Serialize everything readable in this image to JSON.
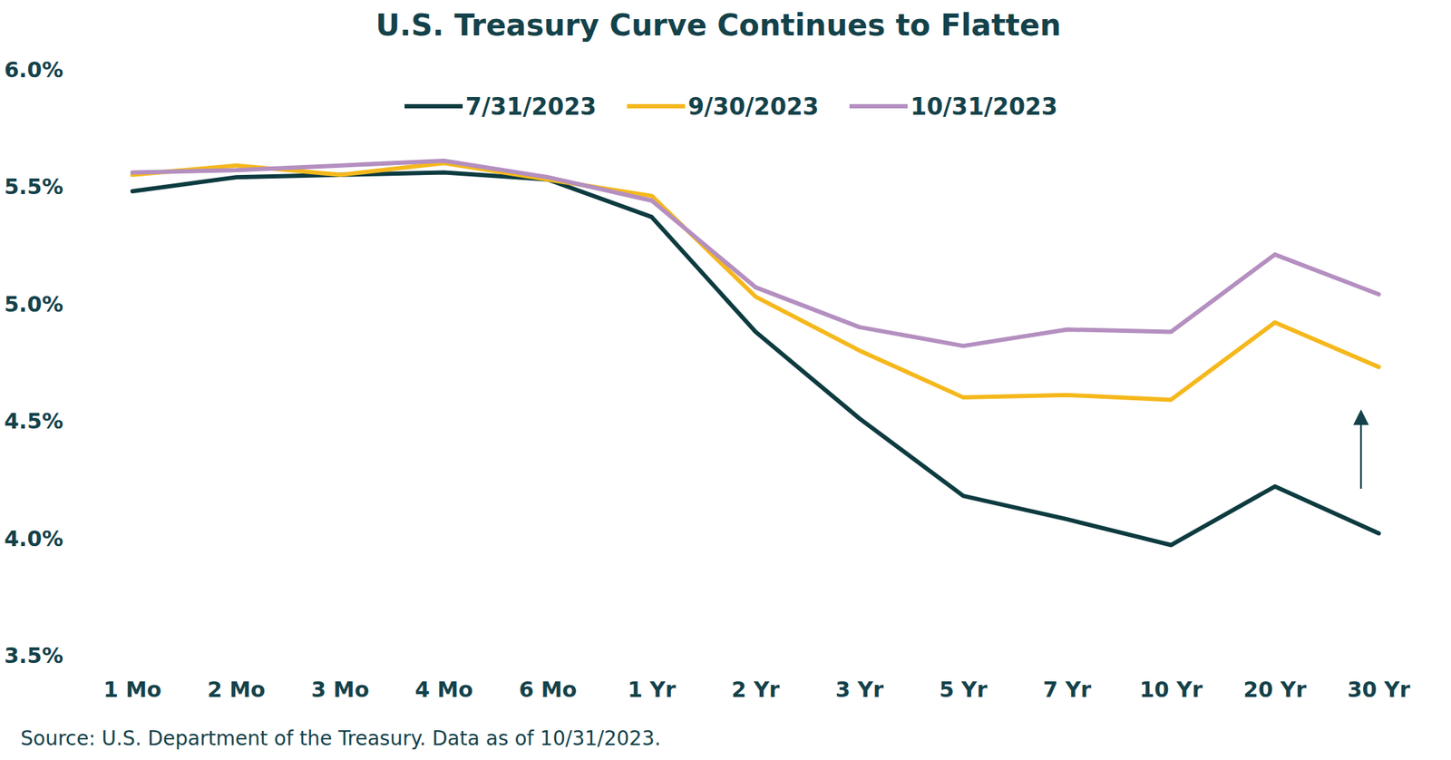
{
  "chart_data": {
    "type": "line",
    "title": "U.S. Treasury Curve Continues to Flatten",
    "source": "Source: U.S. Department of the Treasury. Data as of 10/31/2023.",
    "categories": [
      "1 Mo",
      "2 Mo",
      "3 Mo",
      "4 Mo",
      "6 Mo",
      "1 Yr",
      "2 Yr",
      "3 Yr",
      "5 Yr",
      "7 Yr",
      "10 Yr",
      "20 Yr",
      "30 Yr"
    ],
    "series": [
      {
        "name": "7/31/2023",
        "color": "#0d3b40",
        "values": [
          5.48,
          5.54,
          5.55,
          5.56,
          5.53,
          5.37,
          4.88,
          4.51,
          4.18,
          4.08,
          3.97,
          4.22,
          4.02
        ]
      },
      {
        "name": "9/30/2023",
        "color": "#f5b81c",
        "values": [
          5.55,
          5.59,
          5.55,
          5.6,
          5.53,
          5.46,
          5.03,
          4.8,
          4.6,
          4.61,
          4.59,
          4.92,
          4.73
        ]
      },
      {
        "name": "10/31/2023",
        "color": "#b48fc0",
        "values": [
          5.56,
          5.57,
          5.59,
          5.61,
          5.54,
          5.44,
          5.07,
          4.9,
          4.82,
          4.89,
          4.88,
          5.21,
          5.04
        ]
      }
    ],
    "ylim": [
      3.5,
      6.0
    ],
    "yticks": [
      {
        "value": 3.5,
        "label": "3.5%"
      },
      {
        "value": 4.0,
        "label": "4.0%"
      },
      {
        "value": 4.5,
        "label": "4.5%"
      },
      {
        "value": 5.0,
        "label": "5.0%"
      },
      {
        "value": 5.5,
        "label": "5.5%"
      },
      {
        "value": 6.0,
        "label": "6.0%"
      }
    ],
    "grid": false,
    "legend": "top"
  }
}
